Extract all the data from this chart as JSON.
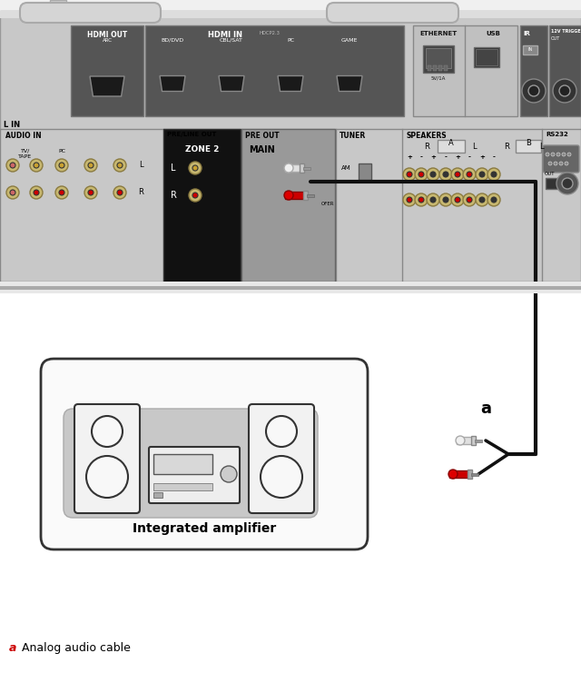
{
  "bg_color": "#ffffff",
  "text_color": "#000000",
  "label_a_color": "#cc0000",
  "integrated_amp_label": "Integrated amplifier",
  "footer_bold": "a",
  "footer_text": " Analog audio cable",
  "label_a": "a",
  "panel_color": "#c8c8c8",
  "panel_dark": "#555555",
  "panel_black": "#111111",
  "hdmi_port_color": "#1a1a1a",
  "cable_color": "#111111",
  "cable_lw": 3.0,
  "rca_white_color": "#e8e8e8",
  "rca_red_color": "#cc0000",
  "speaker_body": "#f0f0f0",
  "amp_body": "#e8e8e8",
  "gold_color": "#c8b870",
  "gold_edge": "#8a7a40",
  "plat_color": "#c0c0c0"
}
